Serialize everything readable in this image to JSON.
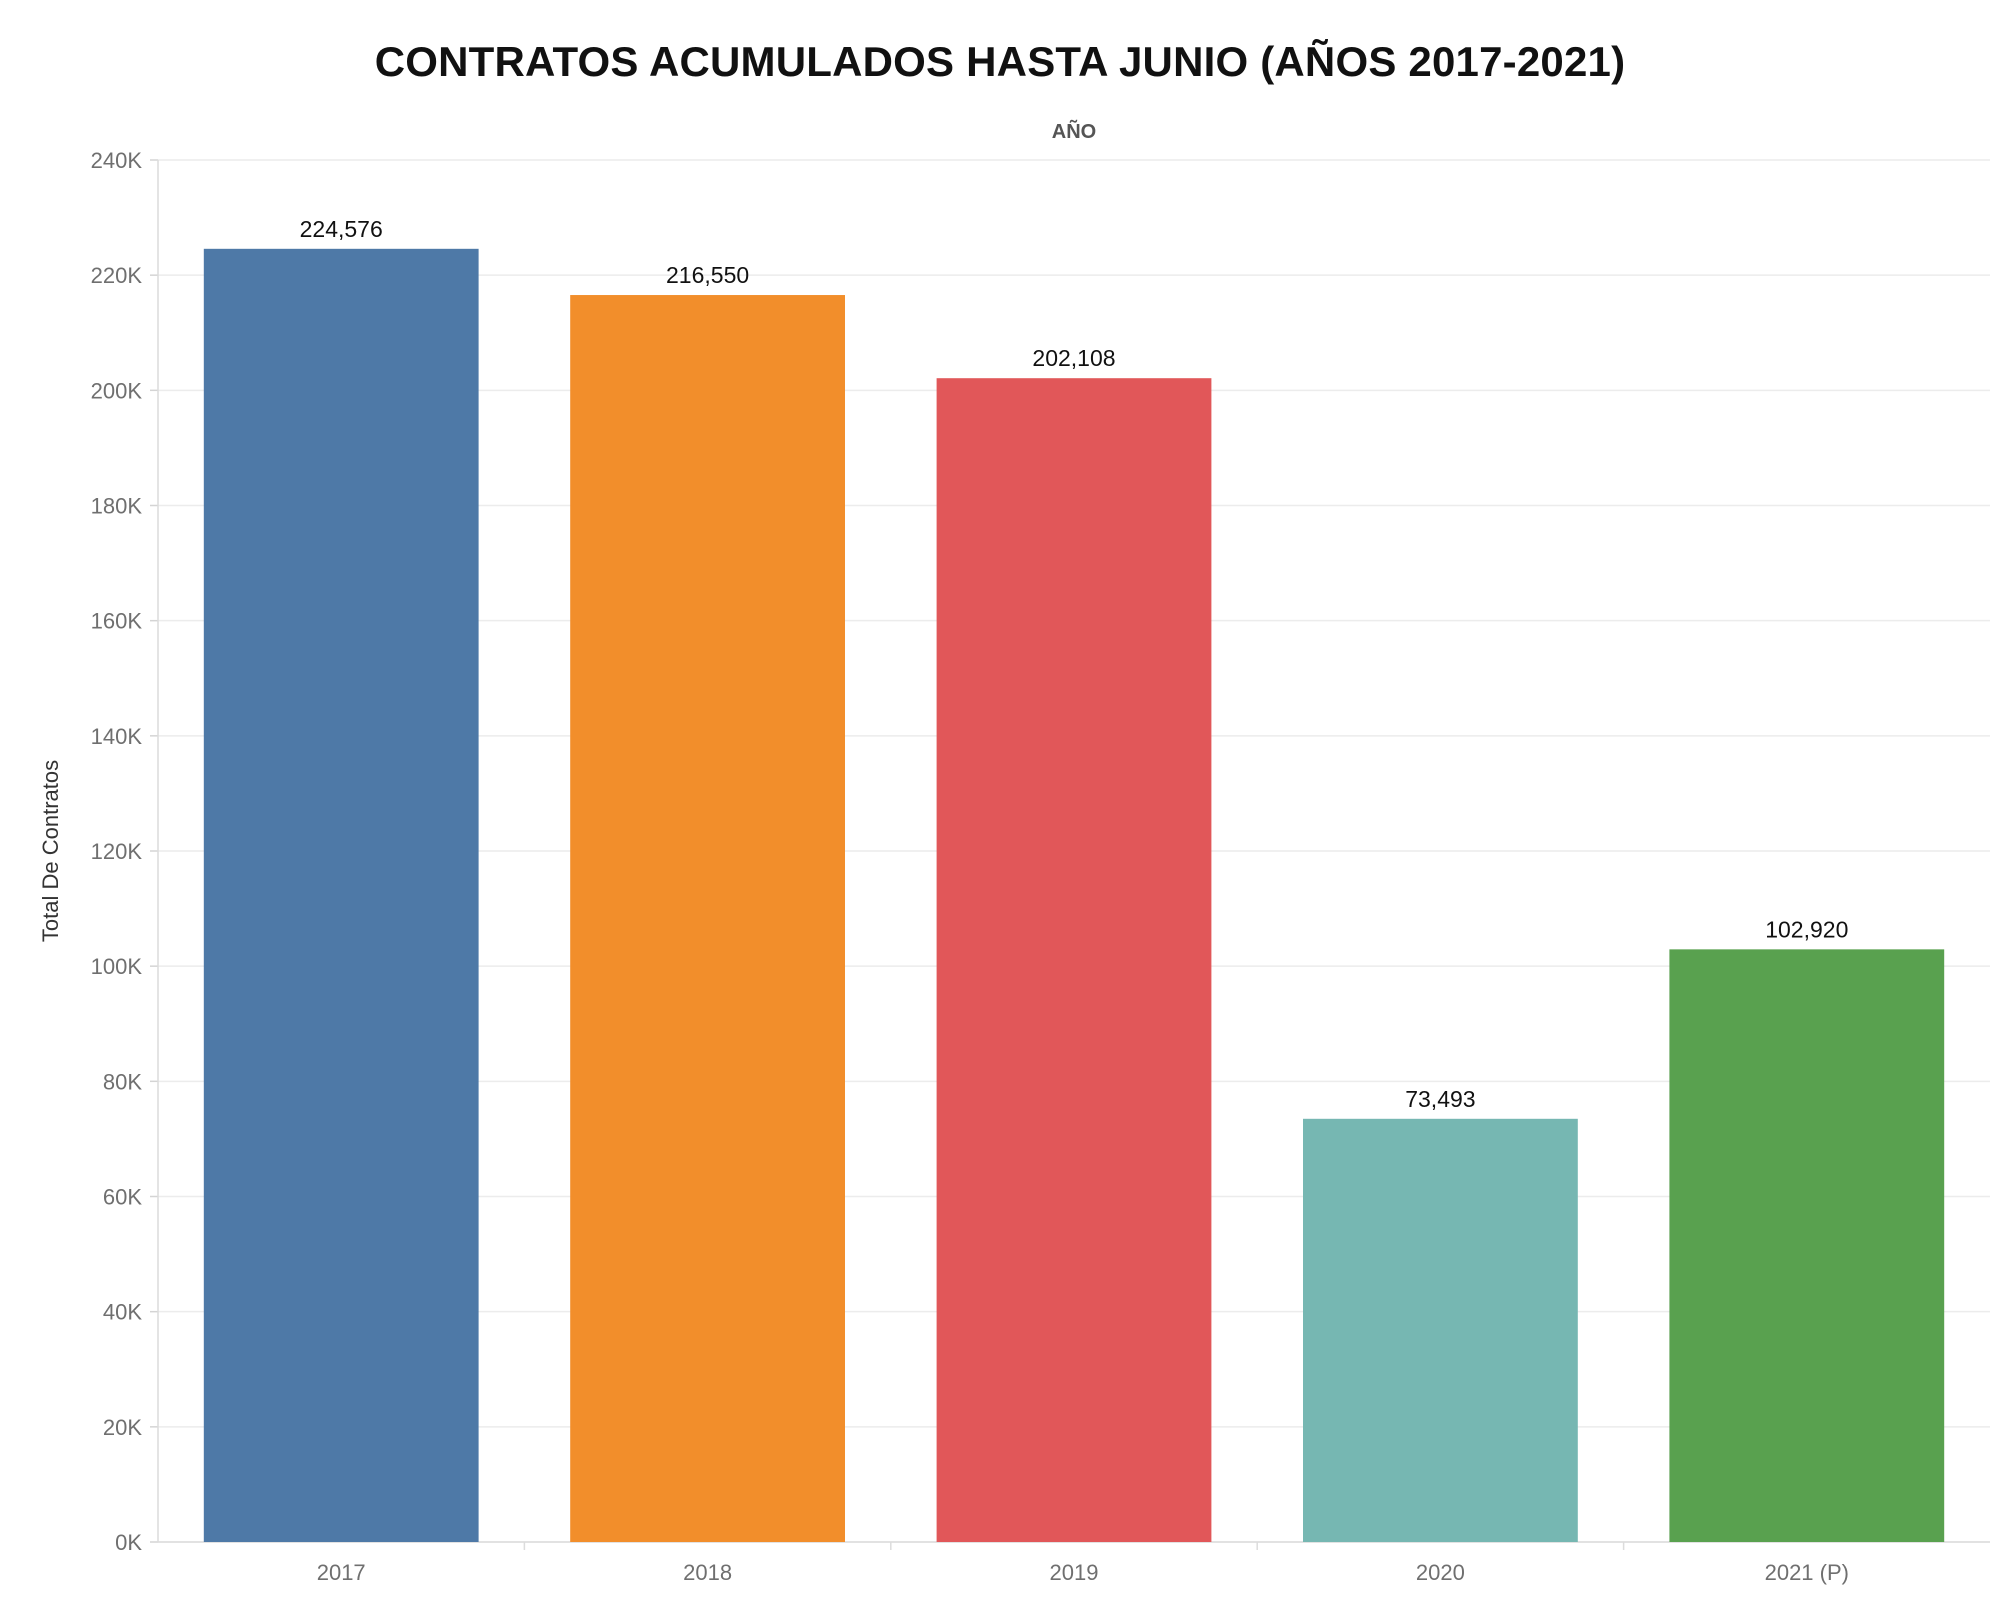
{
  "chart_data": {
    "type": "bar",
    "title": "CONTRATOS ACUMULADOS HASTA JUNIO (AÑOS 2017-2021)",
    "column_header": "AÑO",
    "ylabel": "Total De Contratos",
    "xlabel": "",
    "categories": [
      "2017",
      "2018",
      "2019",
      "2020",
      "2021 (P)"
    ],
    "values": [
      224576,
      216550,
      202108,
      73493,
      102920
    ],
    "value_labels": [
      "224,576",
      "216,550",
      "202,108",
      "73,493",
      "102,920"
    ],
    "colors": [
      "#4e79a7",
      "#f28e2b",
      "#e15759",
      "#76b7b2",
      "#59a14f"
    ],
    "ylim": [
      0,
      240000
    ],
    "yticks": [
      0,
      20000,
      40000,
      60000,
      80000,
      100000,
      120000,
      140000,
      160000,
      180000,
      200000,
      220000,
      240000
    ],
    "ytick_labels": [
      "0K",
      "20K",
      "40K",
      "60K",
      "80K",
      "100K",
      "120K",
      "140K",
      "160K",
      "180K",
      "200K",
      "220K",
      "240K"
    ],
    "grid": true,
    "legend": "none"
  }
}
